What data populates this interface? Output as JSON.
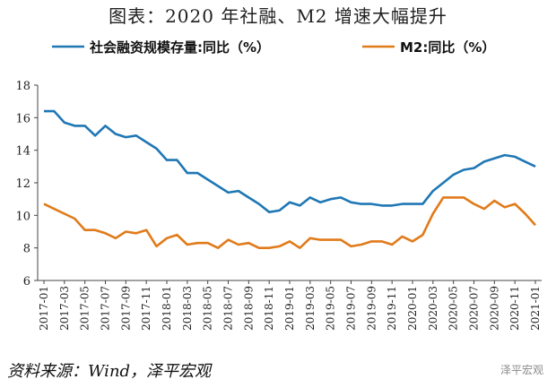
{
  "title": "图表：2020 年社融、M2 增速大幅提升",
  "source": "资料来源：Wind，泽平宏观",
  "watermark": "泽平宏观",
  "chart_data": {
    "type": "line",
    "ylim": [
      6,
      18
    ],
    "yticks": [
      6,
      8,
      10,
      12,
      14,
      16,
      18
    ],
    "grid": false,
    "legend_position": "top",
    "x": [
      "2017-01",
      "2017-02",
      "2017-03",
      "2017-04",
      "2017-05",
      "2017-06",
      "2017-07",
      "2017-08",
      "2017-09",
      "2017-10",
      "2017-11",
      "2017-12",
      "2018-01",
      "2018-02",
      "2018-03",
      "2018-04",
      "2018-05",
      "2018-06",
      "2018-07",
      "2018-08",
      "2018-09",
      "2018-10",
      "2018-11",
      "2018-12",
      "2019-01",
      "2019-02",
      "2019-03",
      "2019-04",
      "2019-05",
      "2019-06",
      "2019-07",
      "2019-08",
      "2019-09",
      "2019-10",
      "2019-11",
      "2019-12",
      "2020-01",
      "2020-02",
      "2020-03",
      "2020-04",
      "2020-05",
      "2020-06",
      "2020-07",
      "2020-08",
      "2020-09",
      "2020-10",
      "2020-11",
      "2020-12",
      "2021-01"
    ],
    "xtick_labels": [
      "2017-01",
      "2017-03",
      "2017-05",
      "2017-07",
      "2017-09",
      "2017-11",
      "2018-01",
      "2018-03",
      "2018-05",
      "2018-07",
      "2018-09",
      "2018-11",
      "2019-01",
      "2019-03",
      "2019-05",
      "2019-07",
      "2019-09",
      "2019-11",
      "2020-01",
      "2020-03",
      "2020-05",
      "2020-07",
      "2020-09",
      "2020-11",
      "2021-01"
    ],
    "series": [
      {
        "name": "社会融资规模存量:同比（%）",
        "color": "#1f77b4",
        "values": [
          16.4,
          16.4,
          15.7,
          15.5,
          15.5,
          14.9,
          15.5,
          15.0,
          14.8,
          14.9,
          14.5,
          14.1,
          13.4,
          13.4,
          12.6,
          12.6,
          12.2,
          11.8,
          11.4,
          11.5,
          11.1,
          10.7,
          10.2,
          10.3,
          10.8,
          10.6,
          11.1,
          10.8,
          11.0,
          11.1,
          10.8,
          10.7,
          10.7,
          10.6,
          10.6,
          10.7,
          10.7,
          10.7,
          11.5,
          12.0,
          12.5,
          12.8,
          12.9,
          13.3,
          13.5,
          13.7,
          13.6,
          13.3,
          13.0
        ]
      },
      {
        "name": "M2:同比（%）",
        "color": "#e07b1a",
        "values": [
          10.7,
          10.4,
          10.1,
          9.8,
          9.1,
          9.1,
          8.9,
          8.6,
          9.0,
          8.9,
          9.1,
          8.1,
          8.6,
          8.8,
          8.2,
          8.3,
          8.3,
          8.0,
          8.5,
          8.2,
          8.3,
          8.0,
          8.0,
          8.1,
          8.4,
          8.0,
          8.6,
          8.5,
          8.5,
          8.5,
          8.1,
          8.2,
          8.4,
          8.4,
          8.2,
          8.7,
          8.4,
          8.8,
          10.1,
          11.1,
          11.1,
          11.1,
          10.7,
          10.4,
          10.9,
          10.5,
          10.7,
          10.1,
          9.4
        ]
      }
    ]
  }
}
